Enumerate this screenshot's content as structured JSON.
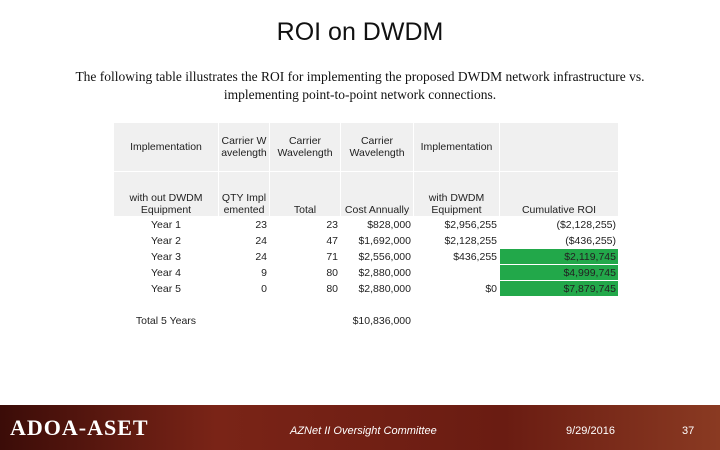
{
  "header": {
    "title": "ROI on DWDM",
    "intro": "The following table illustrates the ROI for implementing the proposed DWDM network infrastructure  vs. implementing point-to-point network connections."
  },
  "table": {
    "header_rows": [
      [
        "Implementation",
        "Carrier Wavelength",
        "Carrier Wavelength",
        "Carrier Wavelength",
        "Implementation",
        null
      ],
      [
        "with out DWDM Equipment",
        "QTY Implemented",
        "Total",
        "Cost Annually",
        "with DWDM Equipment",
        "Cumulative ROI"
      ]
    ],
    "rows": [
      {
        "cells": [
          "Year 1",
          "23",
          "23",
          "$828,000",
          "$2,956,255",
          "($2,128,255)"
        ]
      },
      {
        "cells": [
          "Year 2",
          "24",
          "47",
          "$1,692,000",
          "$2,128,255",
          "($436,255)"
        ]
      },
      {
        "cells": [
          "Year 3",
          "24",
          "71",
          "$2,556,000",
          "$436,255",
          "$2,119,745"
        ],
        "highlight_color": "#22a84a"
      },
      {
        "cells": [
          "Year 4",
          "9",
          "80",
          "$2,880,000",
          null,
          "$4,999,745"
        ],
        "highlight_color": "#22a84a"
      },
      {
        "cells": [
          "Year 5",
          "0",
          "80",
          "$2,880,000",
          "$0",
          "$7,879,745"
        ],
        "highlight_color": "#22a84a"
      }
    ],
    "total_row": [
      "Total 5 Years",
      null,
      null,
      "$10,836,000",
      null,
      null
    ]
  },
  "footer": {
    "logo": "ADOA-ASET",
    "committee": "AZNet II Oversight Committee",
    "date": "9/29/2016",
    "page": "37"
  }
}
